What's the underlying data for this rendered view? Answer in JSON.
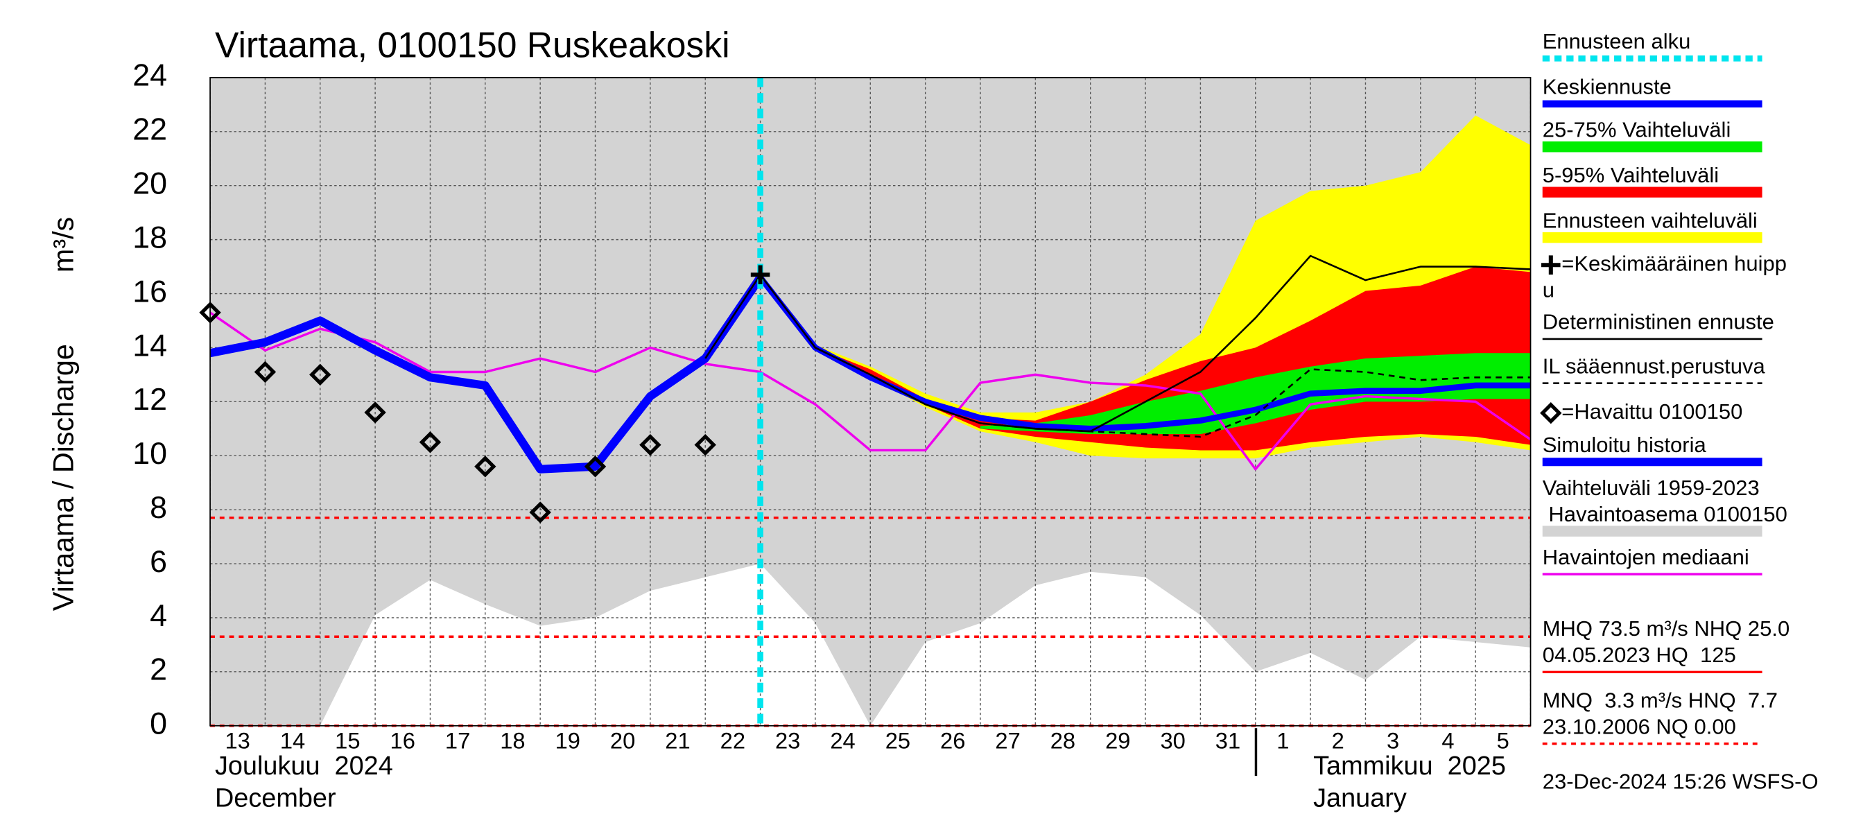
{
  "chart_data": {
    "type": "line",
    "title": "Virtaama, 0100150 Ruskeakoski",
    "y_label": "Virtaama / Discharge",
    "y_unit": "m³/s",
    "x": [
      "2024-12-13",
      "2024-12-14",
      "2024-12-15",
      "2024-12-16",
      "2024-12-17",
      "2024-12-18",
      "2024-12-19",
      "2024-12-20",
      "2024-12-21",
      "2024-12-22",
      "2024-12-23",
      "2024-12-24",
      "2024-12-25",
      "2024-12-26",
      "2024-12-27",
      "2024-12-28",
      "2024-12-29",
      "2024-12-30",
      "2024-12-31",
      "2025-01-01",
      "2025-01-02",
      "2025-01-03",
      "2025-01-04",
      "2025-01-05",
      "2025-01-06"
    ],
    "xlim": [
      "2024-12-13",
      "2025-01-06"
    ],
    "xticks": [
      {
        "value": "2024-12-13",
        "label": "13"
      },
      {
        "value": "2024-12-14",
        "label": "14"
      },
      {
        "value": "2024-12-15",
        "label": "15"
      },
      {
        "value": "2024-12-16",
        "label": "16"
      },
      {
        "value": "2024-12-17",
        "label": "17"
      },
      {
        "value": "2024-12-18",
        "label": "18"
      },
      {
        "value": "2024-12-19",
        "label": "19"
      },
      {
        "value": "2024-12-20",
        "label": "20"
      },
      {
        "value": "2024-12-21",
        "label": "21"
      },
      {
        "value": "2024-12-22",
        "label": "22"
      },
      {
        "value": "2024-12-23",
        "label": "23"
      },
      {
        "value": "2024-12-24",
        "label": "24"
      },
      {
        "value": "2024-12-25",
        "label": "25"
      },
      {
        "value": "2024-12-26",
        "label": "26"
      },
      {
        "value": "2024-12-27",
        "label": "27"
      },
      {
        "value": "2024-12-28",
        "label": "28"
      },
      {
        "value": "2024-12-29",
        "label": "29"
      },
      {
        "value": "2024-12-30",
        "label": "30"
      },
      {
        "value": "2024-12-31",
        "label": "31"
      },
      {
        "value": "2025-01-01",
        "label": "1"
      },
      {
        "value": "2025-01-02",
        "label": "2"
      },
      {
        "value": "2025-01-03",
        "label": "3"
      },
      {
        "value": "2025-01-04",
        "label": "4"
      },
      {
        "value": "2025-01-05",
        "label": "5"
      }
    ],
    "months": [
      {
        "fi": "Joulukuu  2024",
        "en": "December"
      },
      {
        "fi": "Tammikuu  2025",
        "en": "January"
      }
    ],
    "ylim": [
      0,
      24
    ],
    "yticks": [
      0,
      2,
      4,
      6,
      8,
      10,
      12,
      14,
      16,
      18,
      20,
      22,
      24
    ],
    "grid": true,
    "forecast_start": "2024-12-23",
    "series": [
      {
        "kind": "band",
        "color": "#d3d3d3",
        "lower": [
          0,
          0,
          0,
          4.1,
          5.4,
          4.5,
          3.7,
          4.0,
          5.0,
          5.5,
          6.0,
          3.8,
          0,
          3.1,
          3.8,
          5.2,
          5.7,
          5.5,
          4.1,
          2.0,
          2.7,
          1.7,
          3.3,
          3.1,
          2.9
        ],
        "upper": [
          24,
          24,
          24,
          24,
          24,
          24,
          24,
          24,
          24,
          24,
          24,
          24,
          24,
          24,
          24,
          24,
          24,
          24,
          24,
          24,
          24,
          24,
          24,
          24,
          24
        ]
      },
      {
        "kind": "band",
        "color": "#ffff00",
        "lower": [
          null,
          null,
          null,
          null,
          null,
          null,
          null,
          null,
          null,
          null,
          16.7,
          14.0,
          12.9,
          11.8,
          10.9,
          10.5,
          10.0,
          9.9,
          9.9,
          9.9,
          10.3,
          10.5,
          10.7,
          10.5,
          10.2
        ],
        "upper": [
          null,
          null,
          null,
          null,
          null,
          null,
          null,
          null,
          null,
          null,
          16.7,
          14.1,
          13.3,
          12.3,
          11.6,
          11.6,
          12.0,
          13.0,
          14.5,
          18.7,
          19.8,
          20.0,
          20.5,
          22.6,
          21.5
        ]
      },
      {
        "kind": "band",
        "color": "#ff0000",
        "lower": [
          null,
          null,
          null,
          null,
          null,
          null,
          null,
          null,
          null,
          null,
          null,
          14.0,
          13.0,
          11.9,
          11.0,
          10.7,
          10.5,
          10.3,
          10.2,
          10.2,
          10.5,
          10.7,
          10.8,
          10.7,
          10.4
        ],
        "upper": [
          null,
          null,
          null,
          null,
          null,
          null,
          null,
          null,
          null,
          null,
          null,
          14.0,
          13.2,
          12.1,
          11.4,
          11.3,
          12.0,
          12.8,
          13.5,
          14.0,
          15.0,
          16.1,
          16.3,
          17.0,
          16.8
        ]
      },
      {
        "kind": "band",
        "color": "#00ee00",
        "lower": [
          null,
          null,
          null,
          null,
          null,
          null,
          null,
          null,
          null,
          null,
          null,
          null,
          null,
          null,
          11.0,
          10.9,
          10.8,
          10.8,
          10.8,
          11.2,
          11.7,
          12.0,
          12.0,
          12.1,
          12.1
        ],
        "upper": [
          null,
          null,
          null,
          null,
          null,
          null,
          null,
          null,
          null,
          null,
          null,
          null,
          null,
          null,
          11.1,
          11.2,
          11.5,
          12.0,
          12.4,
          12.9,
          13.3,
          13.6,
          13.7,
          13.8,
          13.8
        ]
      },
      {
        "kind": "line",
        "color": "#ee00ee",
        "width": 2,
        "values": [
          15.3,
          13.9,
          14.7,
          14.2,
          13.1,
          13.1,
          13.6,
          13.1,
          14.0,
          13.4,
          13.1,
          11.9,
          10.2,
          10.2,
          12.7,
          13.0,
          12.7,
          12.6,
          12.3,
          9.5,
          11.9,
          12.2,
          12.1,
          12.0,
          10.6
        ]
      },
      {
        "kind": "line",
        "color": "#0000ff",
        "width": 7,
        "values": [
          13.8,
          14.2,
          15.0,
          13.9,
          12.9,
          12.6,
          9.5,
          9.6,
          12.2,
          13.6,
          16.6,
          null,
          null,
          null,
          null,
          null,
          null,
          null,
          null,
          null,
          null,
          null,
          null,
          null,
          null
        ]
      },
      {
        "kind": "line",
        "color": "#0000ff",
        "width": 5,
        "values": [
          null,
          null,
          null,
          null,
          null,
          null,
          null,
          null,
          null,
          null,
          16.6,
          14.0,
          12.9,
          12.0,
          11.4,
          11.1,
          11.0,
          11.1,
          11.3,
          11.7,
          12.3,
          12.4,
          12.4,
          12.6,
          12.6
        ]
      },
      {
        "kind": "line",
        "color": "#000000",
        "width": 1.5,
        "values": [
          null,
          null,
          null,
          null,
          null,
          null,
          null,
          null,
          null,
          13.6,
          16.7,
          14.0,
          13.0,
          11.9,
          11.2,
          11.0,
          10.9,
          12.0,
          13.1,
          15.1,
          17.4,
          16.5,
          17.0,
          17.0,
          16.9
        ]
      },
      {
        "kind": "line",
        "color": "#000000",
        "width": 1.5,
        "dash": "5 4",
        "values": [
          null,
          null,
          null,
          null,
          null,
          null,
          null,
          null,
          null,
          null,
          null,
          null,
          null,
          null,
          11.2,
          11.0,
          10.9,
          10.8,
          10.7,
          11.5,
          13.2,
          13.1,
          12.8,
          12.9,
          12.9
        ]
      },
      {
        "kind": "markers",
        "symbol": "diamond",
        "color": "#000000",
        "values": [
          15.3,
          13.1,
          13.0,
          11.6,
          10.5,
          9.6,
          7.9,
          9.6,
          10.4,
          10.4,
          null,
          null,
          null,
          null,
          null,
          null,
          null,
          null,
          null,
          null,
          null,
          null,
          null,
          null,
          null
        ]
      },
      {
        "kind": "markers",
        "symbol": "plus",
        "color": "#000000",
        "values": [
          null,
          null,
          null,
          null,
          null,
          null,
          null,
          null,
          null,
          null,
          16.7,
          null,
          null,
          null,
          null,
          null,
          null,
          null,
          null,
          null,
          null,
          null,
          null,
          null,
          null
        ]
      }
    ],
    "hlines": [
      {
        "value": 7.7,
        "color": "#ff0000",
        "dash": "4 4"
      },
      {
        "value": 3.3,
        "color": "#ff0000",
        "dash": "4 4"
      },
      {
        "value": 0,
        "color": "#ff0000",
        "dash": "4 4"
      }
    ],
    "legend": [
      {
        "text": [
          "Ennusteen alku"
        ],
        "color": "#00e5ee",
        "width": 5,
        "dash": "6 4"
      },
      {
        "text": [
          "Keskiennuste"
        ],
        "color": "#0000ff",
        "width": 6
      },
      {
        "text": [
          "25-75% Vaihteluväli"
        ],
        "color": "#00ee00",
        "width": 9
      },
      {
        "text": [
          "5-95% Vaihteluväli"
        ],
        "color": "#ff0000",
        "width": 9
      },
      {
        "text": [
          "Ennusteen vaihteluväli"
        ],
        "color": "#ffff00",
        "width": 9
      },
      {
        "text": [
          "=Keskimääräinen huipp",
          "u"
        ],
        "color": "#000000",
        "symbol": "plus"
      },
      {
        "text": [
          "Deterministinen ennuste"
        ],
        "color": "#000000",
        "width": 1.5
      },
      {
        "text": [
          "IL sääennust.perustuva"
        ],
        "color": "#000000",
        "width": 1.5,
        "dash": "5 4"
      },
      {
        "text": [
          "=Havaittu 0100150"
        ],
        "color": "#000000",
        "symbol": "diamond"
      },
      {
        "text": [
          "Simuloitu historia"
        ],
        "color": "#0000ff",
        "width": 7
      },
      {
        "text": [
          "Vaihteluväli 1959-2023",
          " Havaintoasema 0100150"
        ],
        "color": "#d3d3d3",
        "width": 9
      },
      {
        "text": [
          "Havaintojen mediaani"
        ],
        "color": "#ee00ee",
        "width": 2
      },
      {
        "text": [
          "MHQ 73.5 m³/s NHQ 25.0",
          "04.05.2023 HQ  125"
        ],
        "color": "#ff0000",
        "width": 2
      },
      {
        "text": [
          "MNQ  3.3 m³/s HNQ  7.7",
          "23.10.2006 NQ 0.00"
        ],
        "color": "#ff0000",
        "width": 2,
        "dash": "4 4"
      }
    ],
    "timestamp": "23-Dec-2024 15:26 WSFS-O"
  }
}
